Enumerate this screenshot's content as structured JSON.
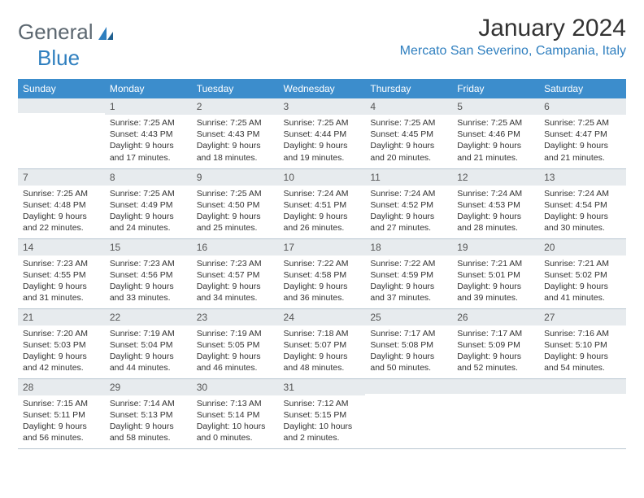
{
  "brand": {
    "part1": "General",
    "part2": "Blue"
  },
  "title": "January 2024",
  "location": "Mercato San Severino, Campania, Italy",
  "colors": {
    "header_bg": "#3c8dcc",
    "header_text": "#ffffff",
    "daynum_bg": "#e7ebee",
    "border": "#b8c6d1",
    "brand_gray": "#5c6770",
    "brand_blue": "#2f7fbf"
  },
  "weekdays": [
    "Sunday",
    "Monday",
    "Tuesday",
    "Wednesday",
    "Thursday",
    "Friday",
    "Saturday"
  ],
  "weeks": [
    [
      {
        "n": "",
        "l1": "",
        "l2": "",
        "l3": "",
        "l4": ""
      },
      {
        "n": "1",
        "l1": "Sunrise: 7:25 AM",
        "l2": "Sunset: 4:43 PM",
        "l3": "Daylight: 9 hours",
        "l4": "and 17 minutes."
      },
      {
        "n": "2",
        "l1": "Sunrise: 7:25 AM",
        "l2": "Sunset: 4:43 PM",
        "l3": "Daylight: 9 hours",
        "l4": "and 18 minutes."
      },
      {
        "n": "3",
        "l1": "Sunrise: 7:25 AM",
        "l2": "Sunset: 4:44 PM",
        "l3": "Daylight: 9 hours",
        "l4": "and 19 minutes."
      },
      {
        "n": "4",
        "l1": "Sunrise: 7:25 AM",
        "l2": "Sunset: 4:45 PM",
        "l3": "Daylight: 9 hours",
        "l4": "and 20 minutes."
      },
      {
        "n": "5",
        "l1": "Sunrise: 7:25 AM",
        "l2": "Sunset: 4:46 PM",
        "l3": "Daylight: 9 hours",
        "l4": "and 21 minutes."
      },
      {
        "n": "6",
        "l1": "Sunrise: 7:25 AM",
        "l2": "Sunset: 4:47 PM",
        "l3": "Daylight: 9 hours",
        "l4": "and 21 minutes."
      }
    ],
    [
      {
        "n": "7",
        "l1": "Sunrise: 7:25 AM",
        "l2": "Sunset: 4:48 PM",
        "l3": "Daylight: 9 hours",
        "l4": "and 22 minutes."
      },
      {
        "n": "8",
        "l1": "Sunrise: 7:25 AM",
        "l2": "Sunset: 4:49 PM",
        "l3": "Daylight: 9 hours",
        "l4": "and 24 minutes."
      },
      {
        "n": "9",
        "l1": "Sunrise: 7:25 AM",
        "l2": "Sunset: 4:50 PM",
        "l3": "Daylight: 9 hours",
        "l4": "and 25 minutes."
      },
      {
        "n": "10",
        "l1": "Sunrise: 7:24 AM",
        "l2": "Sunset: 4:51 PM",
        "l3": "Daylight: 9 hours",
        "l4": "and 26 minutes."
      },
      {
        "n": "11",
        "l1": "Sunrise: 7:24 AM",
        "l2": "Sunset: 4:52 PM",
        "l3": "Daylight: 9 hours",
        "l4": "and 27 minutes."
      },
      {
        "n": "12",
        "l1": "Sunrise: 7:24 AM",
        "l2": "Sunset: 4:53 PM",
        "l3": "Daylight: 9 hours",
        "l4": "and 28 minutes."
      },
      {
        "n": "13",
        "l1": "Sunrise: 7:24 AM",
        "l2": "Sunset: 4:54 PM",
        "l3": "Daylight: 9 hours",
        "l4": "and 30 minutes."
      }
    ],
    [
      {
        "n": "14",
        "l1": "Sunrise: 7:23 AM",
        "l2": "Sunset: 4:55 PM",
        "l3": "Daylight: 9 hours",
        "l4": "and 31 minutes."
      },
      {
        "n": "15",
        "l1": "Sunrise: 7:23 AM",
        "l2": "Sunset: 4:56 PM",
        "l3": "Daylight: 9 hours",
        "l4": "and 33 minutes."
      },
      {
        "n": "16",
        "l1": "Sunrise: 7:23 AM",
        "l2": "Sunset: 4:57 PM",
        "l3": "Daylight: 9 hours",
        "l4": "and 34 minutes."
      },
      {
        "n": "17",
        "l1": "Sunrise: 7:22 AM",
        "l2": "Sunset: 4:58 PM",
        "l3": "Daylight: 9 hours",
        "l4": "and 36 minutes."
      },
      {
        "n": "18",
        "l1": "Sunrise: 7:22 AM",
        "l2": "Sunset: 4:59 PM",
        "l3": "Daylight: 9 hours",
        "l4": "and 37 minutes."
      },
      {
        "n": "19",
        "l1": "Sunrise: 7:21 AM",
        "l2": "Sunset: 5:01 PM",
        "l3": "Daylight: 9 hours",
        "l4": "and 39 minutes."
      },
      {
        "n": "20",
        "l1": "Sunrise: 7:21 AM",
        "l2": "Sunset: 5:02 PM",
        "l3": "Daylight: 9 hours",
        "l4": "and 41 minutes."
      }
    ],
    [
      {
        "n": "21",
        "l1": "Sunrise: 7:20 AM",
        "l2": "Sunset: 5:03 PM",
        "l3": "Daylight: 9 hours",
        "l4": "and 42 minutes."
      },
      {
        "n": "22",
        "l1": "Sunrise: 7:19 AM",
        "l2": "Sunset: 5:04 PM",
        "l3": "Daylight: 9 hours",
        "l4": "and 44 minutes."
      },
      {
        "n": "23",
        "l1": "Sunrise: 7:19 AM",
        "l2": "Sunset: 5:05 PM",
        "l3": "Daylight: 9 hours",
        "l4": "and 46 minutes."
      },
      {
        "n": "24",
        "l1": "Sunrise: 7:18 AM",
        "l2": "Sunset: 5:07 PM",
        "l3": "Daylight: 9 hours",
        "l4": "and 48 minutes."
      },
      {
        "n": "25",
        "l1": "Sunrise: 7:17 AM",
        "l2": "Sunset: 5:08 PM",
        "l3": "Daylight: 9 hours",
        "l4": "and 50 minutes."
      },
      {
        "n": "26",
        "l1": "Sunrise: 7:17 AM",
        "l2": "Sunset: 5:09 PM",
        "l3": "Daylight: 9 hours",
        "l4": "and 52 minutes."
      },
      {
        "n": "27",
        "l1": "Sunrise: 7:16 AM",
        "l2": "Sunset: 5:10 PM",
        "l3": "Daylight: 9 hours",
        "l4": "and 54 minutes."
      }
    ],
    [
      {
        "n": "28",
        "l1": "Sunrise: 7:15 AM",
        "l2": "Sunset: 5:11 PM",
        "l3": "Daylight: 9 hours",
        "l4": "and 56 minutes."
      },
      {
        "n": "29",
        "l1": "Sunrise: 7:14 AM",
        "l2": "Sunset: 5:13 PM",
        "l3": "Daylight: 9 hours",
        "l4": "and 58 minutes."
      },
      {
        "n": "30",
        "l1": "Sunrise: 7:13 AM",
        "l2": "Sunset: 5:14 PM",
        "l3": "Daylight: 10 hours",
        "l4": "and 0 minutes."
      },
      {
        "n": "31",
        "l1": "Sunrise: 7:12 AM",
        "l2": "Sunset: 5:15 PM",
        "l3": "Daylight: 10 hours",
        "l4": "and 2 minutes."
      },
      {
        "n": "",
        "l1": "",
        "l2": "",
        "l3": "",
        "l4": ""
      },
      {
        "n": "",
        "l1": "",
        "l2": "",
        "l3": "",
        "l4": ""
      },
      {
        "n": "",
        "l1": "",
        "l2": "",
        "l3": "",
        "l4": ""
      }
    ]
  ]
}
